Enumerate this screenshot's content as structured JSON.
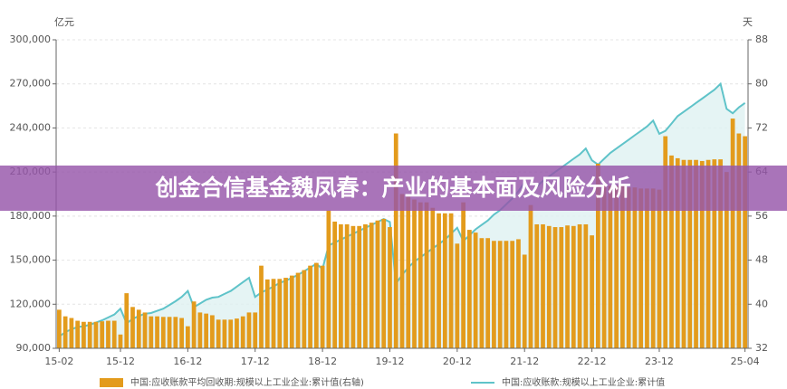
{
  "chart_data": {
    "type": "combo",
    "title": "创金合信基金魏凤春：产业的基本面及风险分析",
    "y_unit": "亿元",
    "y2_unit": "天",
    "categories": [
      "15-02",
      null,
      null,
      null,
      null,
      null,
      null,
      null,
      null,
      null,
      "15-12",
      null,
      null,
      null,
      null,
      null,
      null,
      null,
      null,
      null,
      null,
      "16-12",
      null,
      null,
      null,
      null,
      null,
      null,
      null,
      null,
      null,
      null,
      "17-12",
      null,
      null,
      null,
      null,
      null,
      null,
      null,
      null,
      null,
      null,
      "18-12",
      null,
      null,
      null,
      null,
      null,
      null,
      null,
      null,
      null,
      null,
      "19-12",
      null,
      null,
      null,
      null,
      null,
      null,
      null,
      null,
      null,
      null,
      "20-12",
      null,
      null,
      null,
      null,
      null,
      null,
      null,
      null,
      null,
      null,
      "21-12",
      null,
      null,
      null,
      null,
      null,
      null,
      null,
      null,
      null,
      null,
      "22-12",
      null,
      null,
      null,
      null,
      null,
      null,
      null,
      null,
      null,
      null,
      "23-12",
      null,
      null,
      null,
      null,
      null,
      null,
      null,
      null,
      null,
      null,
      null,
      null,
      null,
      "25-04"
    ],
    "series": [
      {
        "name": "中国:应收账款平均回收期:规模以上工业企业:累计值(右轴)",
        "type": "bar",
        "axis": "y2",
        "color": "#e39b1c",
        "values": [
          39,
          37.8,
          37.5,
          37,
          36.8,
          36.8,
          36.8,
          36.9,
          37,
          37,
          34.5,
          42,
          39.5,
          39,
          38.5,
          37.8,
          37.8,
          37.7,
          37.7,
          37.7,
          37.5,
          36,
          40.5,
          38.5,
          38.3,
          38,
          37.2,
          37.2,
          37.2,
          37.4,
          37.8,
          38.5,
          38.5,
          47,
          44.5,
          44.6,
          44.6,
          44.8,
          45.2,
          45.7,
          46.2,
          47,
          47.5,
          47,
          57,
          55,
          54.5,
          54.5,
          54.2,
          54.2,
          54.5,
          54.8,
          55.2,
          55.5,
          54,
          71,
          60,
          59.5,
          59,
          58.5,
          58.5,
          57.5,
          56.5,
          56.5,
          56.5,
          51,
          58.5,
          53.5,
          53,
          52,
          52,
          51.5,
          51.5,
          51.5,
          51.5,
          51.8,
          49,
          58,
          54.5,
          54.5,
          54.2,
          54,
          54,
          54.3,
          54.2,
          54.5,
          54.5,
          52.5,
          65.5,
          61.5,
          61.5,
          61.5,
          61.5,
          61.2,
          61.2,
          61,
          61,
          61,
          60.8,
          70.5,
          67,
          66.5,
          66.2,
          66.2,
          66.2,
          66,
          66.2,
          66.3,
          66.3,
          64,
          73.7,
          71,
          70.5
        ]
      },
      {
        "name": "中国:应收账款:规模以上工业企业:累计值",
        "type": "line",
        "axis": "y",
        "color": "#5fc3c9",
        "fill": "#dff1f1",
        "values": [
          98000,
          101000,
          103000,
          104500,
          105000,
          106000,
          107500,
          109000,
          111000,
          113000,
          117000,
          107000,
          110000,
          112000,
          113500,
          114000,
          115500,
          117000,
          119500,
          122000,
          125000,
          129000,
          118000,
          120500,
          123000,
          124500,
          125000,
          127000,
          129000,
          132000,
          135000,
          138000,
          125000,
          128000,
          130000,
          132000,
          134500,
          136000,
          138000,
          140000,
          142500,
          145000,
          147500,
          144000,
          160000,
          162000,
          164000,
          166000,
          168000,
          170000,
          172000,
          174000,
          176000,
          178000,
          176000,
          134000,
          140000,
          145000,
          149000,
          152000,
          155000,
          158000,
          161000,
          164000,
          168000,
          172000,
          163000,
          167000,
          171000,
          174000,
          177000,
          181000,
          184000,
          188000,
          192000,
          197000,
          203000,
          196000,
          200000,
          204000,
          207000,
          210000,
          213000,
          216000,
          219000,
          222000,
          226000,
          218000,
          215000,
          219000,
          223000,
          226000,
          229000,
          232000,
          235000,
          238000,
          241000,
          245000,
          236000,
          238000,
          243000,
          248000,
          251000,
          254000,
          257000,
          260000,
          263000,
          266000,
          270000,
          253000,
          250000,
          254000,
          257000
        ]
      }
    ],
    "ylim": [
      90000,
      300000
    ],
    "yticks": [
      {
        "value": 90000,
        "label": "90,000"
      },
      {
        "value": 120000,
        "label": "120,000"
      },
      {
        "value": 150000,
        "label": "150,000"
      },
      {
        "value": 180000,
        "label": "180,000"
      },
      {
        "value": 210000,
        "label": "210,000"
      },
      {
        "value": 240000,
        "label": "240,000"
      },
      {
        "value": 270000,
        "label": "270,000"
      },
      {
        "value": 300000,
        "label": "300,000"
      }
    ],
    "y2lim": [
      32,
      88
    ],
    "y2ticks": [
      32,
      40,
      48,
      56,
      64,
      72,
      80,
      88
    ],
    "grid": true
  }
}
